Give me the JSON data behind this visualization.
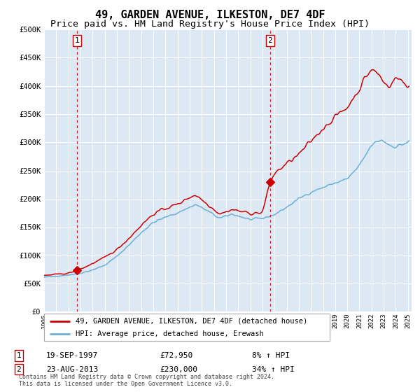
{
  "title": "49, GARDEN AVENUE, ILKESTON, DE7 4DF",
  "subtitle": "Price paid vs. HM Land Registry's House Price Index (HPI)",
  "title_fontsize": 11,
  "subtitle_fontsize": 9.5,
  "hpi_color": "#6baed6",
  "price_color": "#cc0000",
  "bg_color": "#dce9f5",
  "grid_color": "#ffffff",
  "ylim": [
    0,
    500000
  ],
  "yticks": [
    0,
    50000,
    100000,
    150000,
    200000,
    250000,
    300000,
    350000,
    400000,
    450000,
    500000
  ],
  "ytick_labels": [
    "£0",
    "£50K",
    "£100K",
    "£150K",
    "£200K",
    "£250K",
    "£300K",
    "£350K",
    "£400K",
    "£450K",
    "£500K"
  ],
  "sale1_date_num": 1997.72,
  "sale1_price": 72950,
  "sale2_date_num": 2013.64,
  "sale2_price": 230000,
  "legend_line1": "49, GARDEN AVENUE, ILKESTON, DE7 4DF (detached house)",
  "legend_line2": "HPI: Average price, detached house, Erewash",
  "annotation1_num": "1",
  "annotation1_date": "19-SEP-1997",
  "annotation1_price": "£72,950",
  "annotation1_hpi": "8% ↑ HPI",
  "annotation2_num": "2",
  "annotation2_date": "23-AUG-2013",
  "annotation2_price": "£230,000",
  "annotation2_hpi": "34% ↑ HPI",
  "footer": "Contains HM Land Registry data © Crown copyright and database right 2024.\nThis data is licensed under the Open Government Licence v3.0."
}
